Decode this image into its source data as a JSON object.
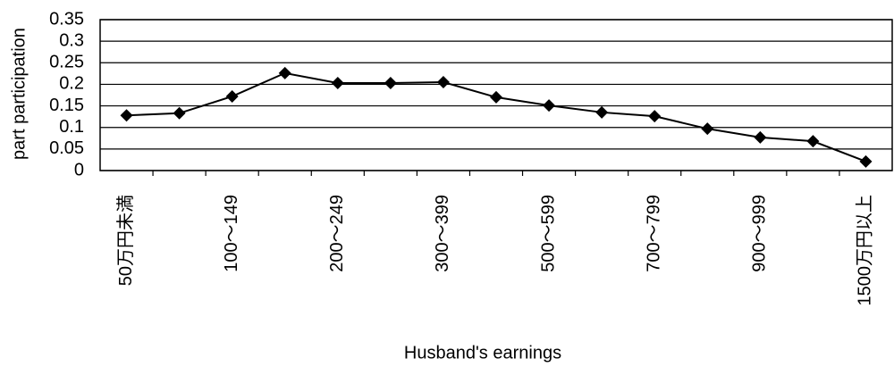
{
  "chart_data": {
    "type": "line",
    "y_label": "part participation",
    "x_label": "Husband's earnings",
    "categories": [
      "50万円未満",
      null,
      "100～149",
      null,
      "200～249",
      null,
      "300～399",
      null,
      "500～599",
      null,
      "700～799",
      null,
      "900～999",
      null,
      "1500万円以上"
    ],
    "series": [
      {
        "name": "part participation",
        "color": "#000000",
        "values": [
          0.128,
          0.133,
          0.172,
          0.226,
          0.203,
          0.203,
          0.205,
          0.17,
          0.151,
          0.135,
          0.126,
          0.097,
          0.077,
          0.068,
          0.021
        ]
      }
    ],
    "ylim": [
      0,
      0.35
    ],
    "yticks": [
      0,
      0.05,
      0.1,
      0.15,
      0.2,
      0.25,
      0.3,
      0.35
    ],
    "grid": true
  }
}
